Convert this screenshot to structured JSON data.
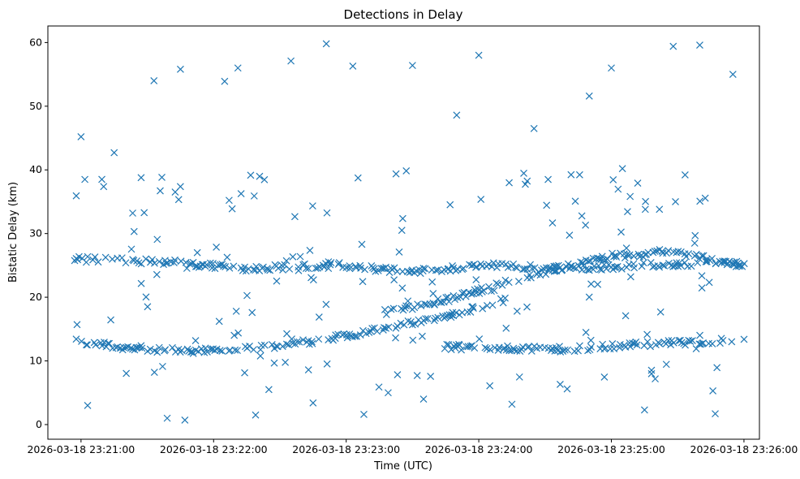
{
  "chart_data": {
    "type": "scatter",
    "title": "Detections in Delay",
    "xlabel": "Time (UTC)",
    "ylabel": "Bistatic Delay (km)",
    "marker": "x",
    "color": "#1f77b4",
    "grid": false,
    "xlim": [
      "2026-03-18 23:20:45",
      "2026-03-18 23:26:07"
    ],
    "ylim": [
      -2.3,
      62.6
    ],
    "xticks": [
      "2026-03-18 23:21:00",
      "2026-03-18 23:22:00",
      "2026-03-18 23:23:00",
      "2026-03-18 23:24:00",
      "2026-03-18 23:25:00",
      "2026-03-18 23:26:00"
    ],
    "yticks": [
      0,
      10,
      20,
      30,
      40,
      50,
      60
    ],
    "tracks": [
      {
        "name": "",
        "t": [
          "23:20:57",
          "23:21:24",
          "23:21:52",
          "23:22:20",
          "23:22:48",
          "23:23:16",
          "23:23:44",
          "23:24:12"
        ],
        "y": [
          13.0,
          12.0,
          11.5,
          12.0,
          13.2,
          15.0,
          17.0,
          19.5
        ]
      },
      {
        "name": "",
        "t": [
          "23:20:57",
          "23:21:40",
          "23:22:15",
          "23:22:55",
          "23:23:30",
          "23:24:05",
          "23:24:40",
          "23:25:15",
          "23:25:50",
          "23:26:00"
        ],
        "y": [
          26.0,
          25.5,
          24.5,
          25.0,
          24.0,
          25.0,
          24.5,
          25.0,
          25.5,
          25.0
        ]
      },
      {
        "name": "",
        "t": [
          "23:23:16",
          "23:23:30",
          "23:23:44",
          "23:24:00",
          "23:24:30",
          "23:25:00",
          "23:25:30",
          "23:25:50",
          "23:26:00"
        ],
        "y": [
          17.5,
          18.5,
          19.5,
          21.0,
          24.0,
          26.5,
          27.0,
          25.5,
          25.0
        ]
      },
      {
        "name": "",
        "t": [
          "23:23:44",
          "23:24:10",
          "23:24:40",
          "23:25:10",
          "23:25:40",
          "23:26:00"
        ],
        "y": [
          12.2,
          12.0,
          11.8,
          12.5,
          13.0,
          13.2
        ]
      }
    ],
    "scattered": {
      "t": [
        "23:21:00",
        "23:21:15",
        "23:21:33",
        "23:21:45",
        "23:22:05",
        "23:22:11",
        "23:22:35",
        "23:22:51",
        "23:23:03",
        "23:23:30",
        "23:23:50",
        "23:24:00",
        "23:24:25",
        "23:24:50",
        "23:25:00",
        "23:25:05",
        "23:25:28",
        "23:25:40",
        "23:25:55",
        "23:21:03",
        "23:21:39",
        "23:21:47",
        "23:22:19",
        "23:22:25",
        "23:22:45",
        "23:23:08",
        "23:23:19",
        "23:23:35",
        "23:24:15",
        "23:24:40",
        "23:25:15",
        "23:25:47"
      ],
      "y": [
        45.2,
        42.7,
        54.0,
        55.8,
        53.9,
        56.0,
        57.1,
        59.8,
        56.3,
        56.4,
        48.6,
        58.0,
        46.5,
        51.6,
        56.0,
        40.2,
        59.4,
        59.6,
        55.0,
        3.0,
        1.0,
        0.7,
        1.5,
        5.5,
        3.4,
        1.6,
        5.0,
        4.0,
        3.2,
        5.6,
        2.3,
        1.7
      ]
    }
  }
}
